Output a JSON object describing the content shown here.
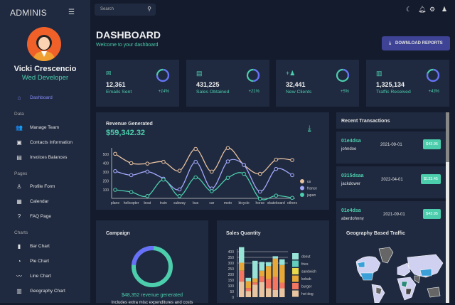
{
  "app": {
    "brand": "ADMINIS",
    "menu_icon": "hamburger-icon"
  },
  "user": {
    "name": "Vicki Crescencio",
    "role": "Wed Developer"
  },
  "sidebar": {
    "dashboard": "Dashboard",
    "sections": [
      {
        "label": "Data",
        "items": [
          {
            "label": "Manage Team",
            "icon": "team-icon"
          },
          {
            "label": "Contacts Information",
            "icon": "contacts-icon"
          },
          {
            "label": "Invoices Balances",
            "icon": "invoice-icon"
          }
        ]
      },
      {
        "label": "Pages",
        "items": [
          {
            "label": "Profile Form",
            "icon": "profile-icon"
          },
          {
            "label": "Calendar",
            "icon": "calendar-icon"
          },
          {
            "label": "FAQ Page",
            "icon": "help-icon"
          }
        ]
      },
      {
        "label": "Charts",
        "items": [
          {
            "label": "Bar Chart",
            "icon": "bar-chart-icon"
          },
          {
            "label": "Pie Chart",
            "icon": "pie-chart-icon"
          },
          {
            "label": "Line Chart",
            "icon": "line-chart-icon"
          },
          {
            "label": "Geography Chart",
            "icon": "map-icon"
          }
        ]
      }
    ]
  },
  "topbar": {
    "search_placeholder": "Search"
  },
  "header": {
    "title": "DASHBOARD",
    "subtitle": "Welcome to your dashboard",
    "download": "DOWNLOAD REPORTS"
  },
  "stats": [
    {
      "value": "12,361",
      "label": "Emails Sent",
      "pct": "+14%",
      "progress": 0.75,
      "icon": "email-icon"
    },
    {
      "value": "431,225",
      "label": "Sales Obtained",
      "pct": "+21%",
      "progress": 0.5,
      "icon": "point-of-sale-icon"
    },
    {
      "value": "32,441",
      "label": "New Clients",
      "pct": "+5%",
      "progress": 0.3,
      "icon": "person-add-icon"
    },
    {
      "value": "1,325,134",
      "label": "Traffic Received",
      "pct": "+43%",
      "progress": 0.8,
      "icon": "traffic-icon"
    }
  ],
  "revenue": {
    "title": "Revenue Generated",
    "amount": "$59,342.32"
  },
  "colors": {
    "accent": "#4cceac",
    "primary": "#3e4396",
    "us": "#e8c1a0",
    "france": "#a4a9fc",
    "japan": "#4cceac"
  },
  "chart_data": [
    {
      "type": "line",
      "categories": [
        "plane",
        "helicopter",
        "boat",
        "train",
        "subway",
        "bus",
        "car",
        "moto",
        "bicycle",
        "horse",
        "skateboard",
        "others"
      ],
      "y_ticks": [
        100,
        200,
        300,
        400,
        500
      ],
      "series": [
        {
          "name": "us",
          "values": [
            505,
            400,
            395,
            415,
            315,
            560,
            305,
            570,
            380,
            280,
            440,
            435
          ]
        },
        {
          "name": "france",
          "values": [
            310,
            265,
            305,
            225,
            105,
            415,
            115,
            420,
            380,
            80,
            335,
            265
          ]
        },
        {
          "name": "japan",
          "values": [
            100,
            75,
            30,
            215,
            30,
            240,
            85,
            235,
            280,
            0,
            35,
            10
          ]
        }
      ],
      "legend": "right"
    },
    {
      "type": "bar",
      "title": "Sales Quantity",
      "stacked": true,
      "y_ticks": [
        0,
        50,
        100,
        150,
        200,
        250,
        300,
        350,
        400
      ],
      "series": [
        {
          "name": "hot dog",
          "values": [
            137,
            55,
            110,
            133,
            78,
            63,
            78
          ]
        },
        {
          "name": "burger",
          "values": [
            96,
            25,
            20,
            50,
            80,
            115,
            50
          ]
        },
        {
          "name": "kebab",
          "values": [
            70,
            60,
            35,
            50,
            115,
            162,
            155
          ]
        },
        {
          "name": "sandwich",
          "values": [
            0,
            0,
            0,
            0,
            0,
            0,
            0
          ]
        },
        {
          "name": "fries",
          "values": [
            0,
            0,
            0,
            0,
            0,
            0,
            0
          ]
        },
        {
          "name": "donut",
          "values": [
            137,
            30,
            155,
            77,
            35,
            20,
            50
          ]
        }
      ],
      "legend": "right"
    },
    {
      "type": "pie",
      "title": "Campaign",
      "values": [
        0.75,
        0.25
      ]
    }
  ],
  "bar_colors": {
    "hot dog": "#e8c4a0",
    "burger": "#f47560",
    "kebab": "#e8a838",
    "sandwich": "#e8d84b",
    "fries": "#61cdbb",
    "donut": "#97e3d5"
  },
  "transactions": {
    "title": "Recent Transactions",
    "items": [
      {
        "id": "01e4dsa",
        "user": "johndoe",
        "date": "2021-09-01",
        "amount": "$43.95"
      },
      {
        "id": "0315dsaa",
        "user": "jackdower",
        "date": "2022-04-01",
        "amount": "$133.45"
      },
      {
        "id": "01e4dsa",
        "user": "aberdohnny",
        "date": "2021-09-01",
        "amount": "$43.95"
      }
    ]
  },
  "campaign": {
    "title": "Campaign",
    "revenue": "$48,352 revenue generated",
    "note": "Includes extra misc expenditures and costs"
  },
  "sales": {
    "title": "Sales Quantity"
  },
  "geo": {
    "title": "Geography Based Traffic"
  }
}
